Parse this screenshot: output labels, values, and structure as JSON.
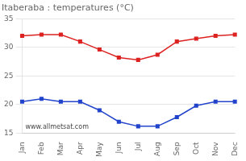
{
  "chart_data": {
    "type": "line",
    "title": "Itaberaba : temperatures (°C)",
    "categories": [
      "Jan",
      "Feb",
      "Mar",
      "Apr",
      "May",
      "Jun",
      "Jul",
      "Aug",
      "Sep",
      "Oct",
      "Nov",
      "Dec"
    ],
    "series": [
      {
        "color": "#dd2222",
        "marker": "square",
        "values": [
          32.0,
          32.2,
          32.2,
          31.0,
          29.6,
          28.2,
          27.8,
          28.7,
          31.0,
          31.5,
          32.0,
          32.2
        ]
      },
      {
        "color": "#2244cc",
        "marker": "square",
        "values": [
          20.5,
          21.0,
          20.5,
          20.5,
          19.0,
          17.0,
          16.2,
          16.2,
          17.8,
          19.8,
          20.5,
          20.5
        ]
      }
    ],
    "ylim": [
      15,
      35
    ],
    "yticks": [
      15,
      20,
      25,
      30,
      35
    ],
    "grid": true,
    "annotation": "www.allmetsat.com"
  }
}
